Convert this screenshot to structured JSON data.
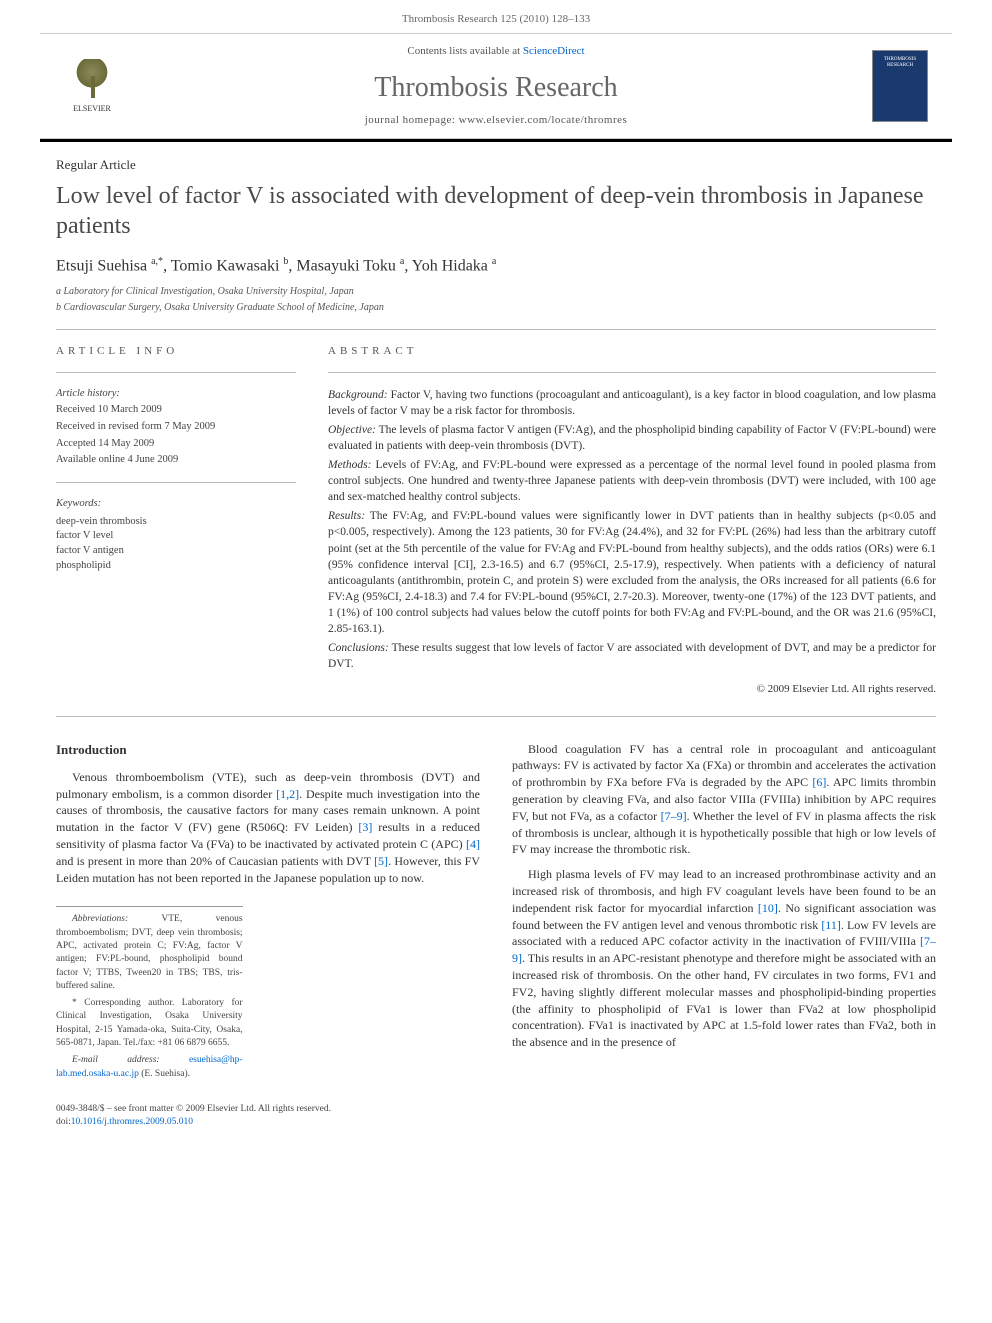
{
  "header": {
    "running": "Thrombosis Research 125 (2010) 128–133"
  },
  "banner": {
    "contents_prefix": "Contents lists available at ",
    "contents_link": "ScienceDirect",
    "journal": "Thrombosis Research",
    "homepage_prefix": "journal homepage: ",
    "homepage": "www.elsevier.com/locate/thromres",
    "publisher": "ELSEVIER",
    "cover_label": "THROMBOSIS RESEARCH"
  },
  "article": {
    "type": "Regular Article",
    "title": "Low level of factor V is associated with development of deep-vein thrombosis in Japanese patients",
    "authors_html": "Etsuji Suehisa <sup>a,*</sup>, Tomio Kawasaki <sup>b</sup>, Masayuki Toku <sup>a</sup>, Yoh Hidaka <sup>a</sup>",
    "affiliations": [
      "a Laboratory for Clinical Investigation, Osaka University Hospital, Japan",
      "b Cardiovascular Surgery, Osaka University Graduate School of Medicine, Japan"
    ]
  },
  "info": {
    "head": "ARTICLE INFO",
    "history_label": "Article history:",
    "history": [
      "Received 10 March 2009",
      "Received in revised form 7 May 2009",
      "Accepted 14 May 2009",
      "Available online 4 June 2009"
    ],
    "keywords_label": "Keywords:",
    "keywords": [
      "deep-vein thrombosis",
      "factor V level",
      "factor V antigen",
      "phospholipid"
    ]
  },
  "abstract": {
    "head": "ABSTRACT",
    "segments": [
      {
        "label": "Background:",
        "text": " Factor V, having two functions (procoagulant and anticoagulant), is a key factor in blood coagulation, and low plasma levels of factor V may be a risk factor for thrombosis."
      },
      {
        "label": "Objective:",
        "text": " The levels of plasma factor V antigen (FV:Ag), and the phospholipid binding capability of Factor V (FV:PL-bound) were evaluated in patients with deep-vein thrombosis (DVT)."
      },
      {
        "label": "Methods:",
        "text": " Levels of FV:Ag, and FV:PL-bound were expressed as a percentage of the normal level found in pooled plasma from control subjects. One hundred and twenty-three Japanese patients with deep-vein thrombosis (DVT) were included, with 100 age and sex-matched healthy control subjects."
      },
      {
        "label": "Results:",
        "text": " The FV:Ag, and FV:PL-bound values were significantly lower in DVT patients than in healthy subjects (p<0.05 and p<0.005, respectively). Among the 123 patients, 30 for FV:Ag (24.4%), and 32 for FV:PL (26%) had less than the arbitrary cutoff point (set at the 5th percentile of the value for FV:Ag and FV:PL-bound from healthy subjects), and the odds ratios (ORs) were 6.1 (95% confidence interval [CI], 2.3-16.5) and 6.7 (95%CI, 2.5-17.9), respectively. When patients with a deficiency of natural anticoagulants (antithrombin, protein C, and protein S) were excluded from the analysis, the ORs increased for all patients (6.6 for FV:Ag (95%CI, 2.4-18.3) and 7.4 for FV:PL-bound (95%CI, 2.7-20.3). Moreover, twenty-one (17%) of the 123 DVT patients, and 1 (1%) of 100 control subjects had values below the cutoff points for both FV:Ag and FV:PL-bound, and the OR was 21.6 (95%CI, 2.85-163.1)."
      },
      {
        "label": "Conclusions:",
        "text": " These results suggest that low levels of factor V are associated with development of DVT, and may be a predictor for DVT."
      }
    ],
    "copyright": "© 2009 Elsevier Ltd. All rights reserved."
  },
  "body": {
    "intro_head": "Introduction",
    "left_paras": [
      "Venous thromboembolism (VTE), such as deep-vein thrombosis (DVT) and pulmonary embolism, is a common disorder [1,2]. Despite much investigation into the causes of thrombosis, the causative factors for many cases remain unknown. A point mutation in the factor V (FV) gene (R506Q: FV Leiden) [3] results in a reduced sensitivity of plasma factor Va (FVa) to be inactivated by activated protein C (APC) [4] and is present in more than 20% of Caucasian patients with DVT [5]. However, this FV Leiden mutation has not been reported in the Japanese population up to now."
    ],
    "right_paras": [
      "Blood coagulation FV has a central role in procoagulant and anticoagulant pathways: FV is activated by factor Xa (FXa) or thrombin and accelerates the activation of prothrombin by FXa before FVa is degraded by the APC [6]. APC limits thrombin generation by cleaving FVa, and also factor VIIIa (FVIIIa) inhibition by APC requires FV, but not FVa, as a cofactor [7–9]. Whether the level of FV in plasma affects the risk of thrombosis is unclear, although it is hypothetically possible that high or low levels of FV may increase the thrombotic risk.",
      "High plasma levels of FV may lead to an increased prothrombinase activity and an increased risk of thrombosis, and high FV coagulant levels have been found to be an independent risk factor for myocardial infarction [10]. No significant association was found between the FV antigen level and venous thrombotic risk [11]. Low FV levels are associated with a reduced APC cofactor activity in the inactivation of FVIII/VIIIa [7–9]. This results in an APC-resistant phenotype and therefore might be associated with an increased risk of thrombosis. On the other hand, FV circulates in two forms, FV1 and FV2, having slightly different molecular masses and phospholipid-binding properties (the affinity to phospholipid of FVa1 is lower than FVa2 at low phospholipid concentration). FVa1 is inactivated by APC at 1.5-fold lower rates than FVa2, both in the absence and in the presence of"
    ]
  },
  "footnotes": {
    "abbrev_label": "Abbreviations:",
    "abbrev": " VTE, venous thromboembolism; DVT, deep vein thrombosis; APC, activated protein C; FV:Ag, factor V antigen; FV:PL-bound, phospholipid bound factor V; TTBS, Tween20 in TBS; TBS, tris-buffered saline.",
    "corr_label": "* Corresponding author.",
    "corr": " Laboratory for Clinical Investigation, Osaka University Hospital, 2-15 Yamada-oka, Suita-City, Osaka, 565-0871, Japan. Tel./fax: +81 06 6879 6655.",
    "email_label": "E-mail address:",
    "email": "esuehisa@hp-lab.med.osaka-u.ac.jp",
    "email_suffix": " (E. Suehisa)."
  },
  "bottom": {
    "issn": "0049-3848/$ – see front matter © 2009 Elsevier Ltd. All rights reserved.",
    "doi_label": "doi:",
    "doi": "10.1016/j.thromres.2009.05.010"
  },
  "colors": {
    "link": "#0066cc",
    "rule": "#bbbbbb",
    "text": "#333333",
    "muted": "#666666",
    "cover_bg": "#1a3a6e"
  }
}
